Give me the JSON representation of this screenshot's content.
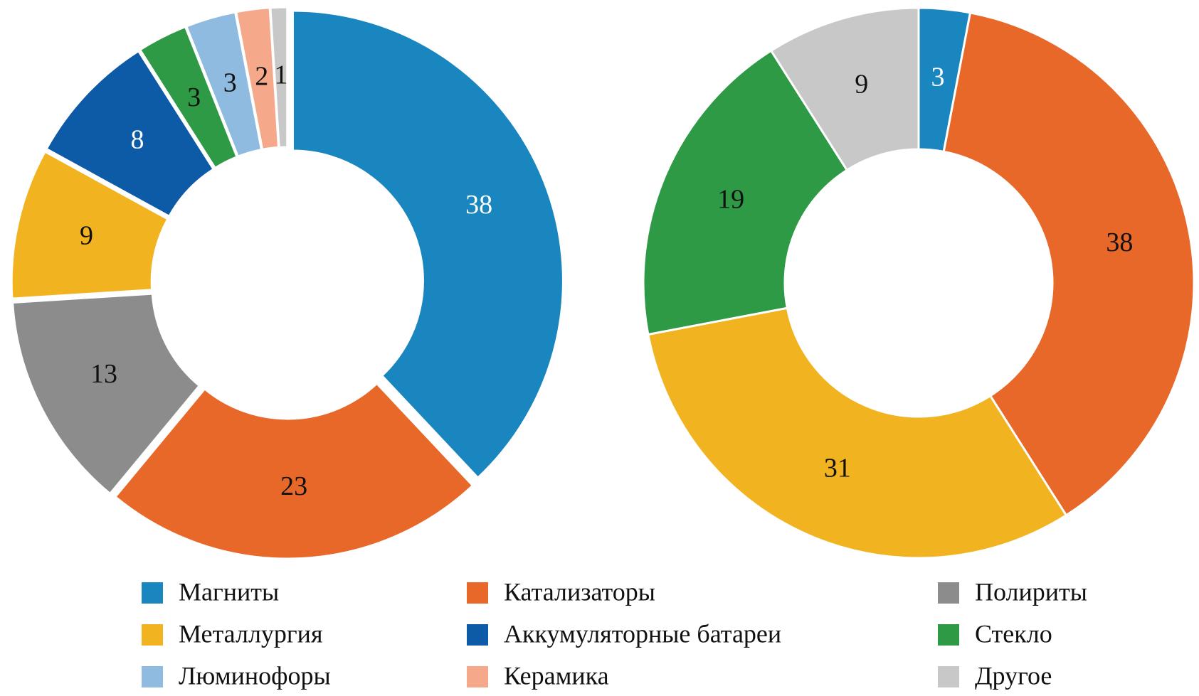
{
  "chart_data": [
    {
      "type": "pie",
      "categories": [
        "Магниты",
        "Катализаторы",
        "Полириты",
        "Металлургия",
        "Аккумуляторные батареи",
        "Стекло",
        "Люминофоры",
        "Керамика",
        "Другое"
      ],
      "values": [
        38,
        23,
        13,
        9,
        8,
        3,
        3,
        2,
        1
      ],
      "colors": [
        "#1a86c0",
        "#e8682a",
        "#8c8c8c",
        "#f2b320",
        "#0d5aa7",
        "#2f9a45",
        "#8fbbe0",
        "#f6a98a",
        "#c8c8c8"
      ],
      "legend": "bottom"
    },
    {
      "type": "pie",
      "categories": [
        "Магниты",
        "Катализаторы",
        "Металлургия",
        "Стекло",
        "Другое"
      ],
      "values": [
        3,
        38,
        31,
        19,
        9
      ]
    }
  ]
}
